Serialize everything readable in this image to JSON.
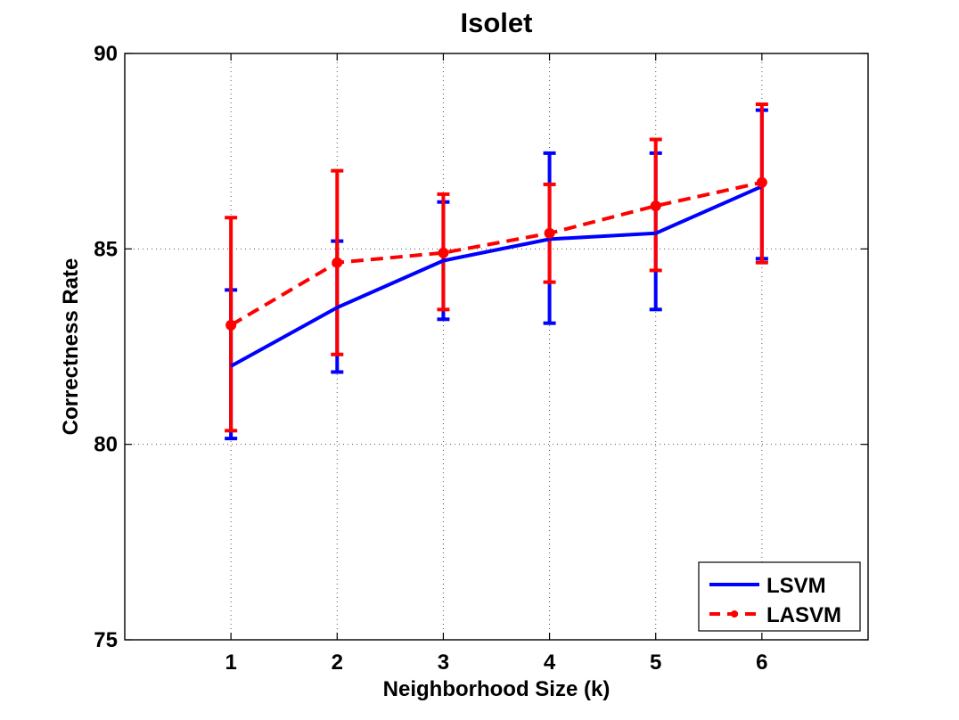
{
  "chart_data": {
    "type": "line",
    "title": "Isolet",
    "xlabel": "Neighborhood Size (k)",
    "ylabel": "Correctness Rate",
    "x": [
      1,
      2,
      3,
      4,
      5,
      6
    ],
    "xlim": [
      0,
      7
    ],
    "ylim": [
      75,
      90
    ],
    "xticks": [
      "1",
      "2",
      "3",
      "4",
      "5",
      "6"
    ],
    "yticks": [
      75,
      80,
      85,
      90
    ],
    "grid": true,
    "legend_position": "bottom-right",
    "series": [
      {
        "name": "LSVM",
        "color": "#0000ff",
        "style": "solid",
        "marker": "none",
        "values": [
          82.0,
          83.5,
          84.7,
          85.25,
          85.4,
          86.6
        ],
        "err_low": [
          80.15,
          81.85,
          83.2,
          83.1,
          83.45,
          84.75
        ],
        "err_high": [
          83.95,
          85.2,
          86.2,
          87.45,
          87.45,
          88.55
        ]
      },
      {
        "name": "LASVM",
        "color": "#ff0000",
        "style": "dashed",
        "marker": "dot",
        "values": [
          83.05,
          84.65,
          84.9,
          85.4,
          86.1,
          86.7
        ],
        "err_low": [
          80.35,
          82.3,
          83.45,
          84.15,
          84.45,
          84.65
        ],
        "err_high": [
          85.8,
          87.0,
          86.4,
          86.65,
          87.8,
          88.7
        ]
      }
    ]
  }
}
